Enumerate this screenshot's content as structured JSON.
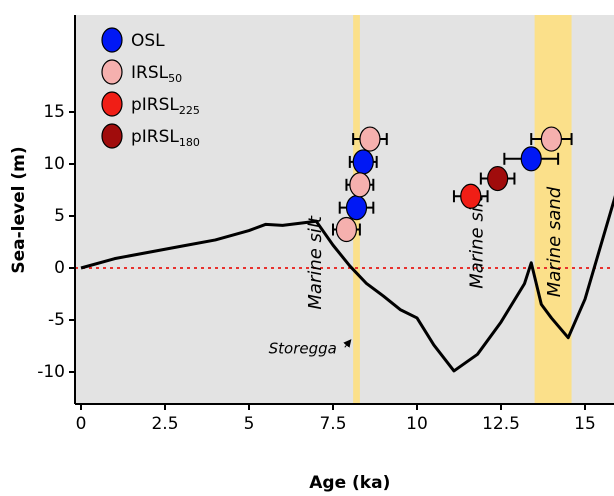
{
  "chart_data": {
    "type": "scatter",
    "xlabel": "Age (ka)",
    "ylabel": "Sea-level (m)",
    "xlim": [
      0,
      16
    ],
    "ylim": [
      -10,
      16
    ],
    "xticks": [
      "0",
      "2.5",
      "5",
      "7.5",
      "10",
      "12.5",
      "15"
    ],
    "xtick_values": [
      0,
      2.5,
      5,
      7.5,
      10,
      12.5,
      15
    ],
    "yticks": [
      "-10",
      "-5",
      "0",
      "5",
      "10",
      "15"
    ],
    "ytick_values": [
      -10,
      -5,
      0,
      5,
      10,
      15
    ],
    "reference_line": {
      "y": 0,
      "color": "#e8322e",
      "style": "dotted"
    },
    "background_color": "#e3e3e3",
    "highlight_bands": [
      {
        "x0": 8.1,
        "x1": 8.3,
        "color": "#fbe08a"
      },
      {
        "x0": 13.5,
        "x1": 14.6,
        "color": "#fbe08a"
      }
    ],
    "sea_level_curve": {
      "x": [
        0,
        1,
        2,
        3,
        4,
        5,
        5.5,
        6,
        7,
        7.5,
        8,
        8.5,
        9,
        9.5,
        10,
        10.5,
        11.1,
        11.8,
        12.5,
        13.2,
        13.4,
        13.7,
        14,
        14.5,
        15,
        16
      ],
      "y": [
        0,
        0.9,
        1.5,
        2.1,
        2.7,
        3.6,
        4.2,
        4.1,
        4.5,
        2.2,
        0.2,
        -1.5,
        -2.7,
        -4,
        -4.8,
        -7.4,
        -9.9,
        -8.3,
        -5.2,
        -1.5,
        0.5,
        -3.5,
        -4.8,
        -6.7,
        -3,
        8
      ]
    },
    "series": [
      {
        "name": "OSL",
        "color": "#0018f5",
        "points": [
          {
            "x": 8.4,
            "y": 10.2,
            "xerr": 0.4
          },
          {
            "x": 8.2,
            "y": 5.8,
            "xerr": 0.5
          },
          {
            "x": 13.4,
            "y": 10.5,
            "xerr": 0.8
          }
        ]
      },
      {
        "name": "IRSL",
        "sub": "50",
        "color": "#f5b0ae",
        "points": [
          {
            "x": 8.6,
            "y": 12.4,
            "xerr": 0.5
          },
          {
            "x": 8.3,
            "y": 8.0,
            "xerr": 0.4
          },
          {
            "x": 7.9,
            "y": 3.7,
            "xerr": 0.4
          },
          {
            "x": 14.0,
            "y": 12.4,
            "xerr": 0.6
          }
        ]
      },
      {
        "name": "pIRSL",
        "sub": "225",
        "color": "#f01e16",
        "points": [
          {
            "x": 11.6,
            "y": 6.9,
            "xerr": 0.5
          }
        ]
      },
      {
        "name": "pIRSL",
        "sub": "180",
        "color": "#a00c0c",
        "points": [
          {
            "x": 12.4,
            "y": 8.6,
            "xerr": 0.5
          }
        ]
      }
    ],
    "annotations": [
      {
        "text": "Marine silt",
        "x": 7.0,
        "y": 0.5,
        "rotate": -90
      },
      {
        "text": "Marine silt",
        "x": 11.8,
        "y": 2.5,
        "rotate": -90
      },
      {
        "text": "Marine sand",
        "x": 14.1,
        "y": 2.5,
        "rotate": -90
      }
    ],
    "callout": {
      "text": "Storegga",
      "x": 6.6,
      "y": -8.2,
      "arrow_to": [
        8.1,
        -6.6
      ]
    },
    "legend_position": "top-left"
  }
}
